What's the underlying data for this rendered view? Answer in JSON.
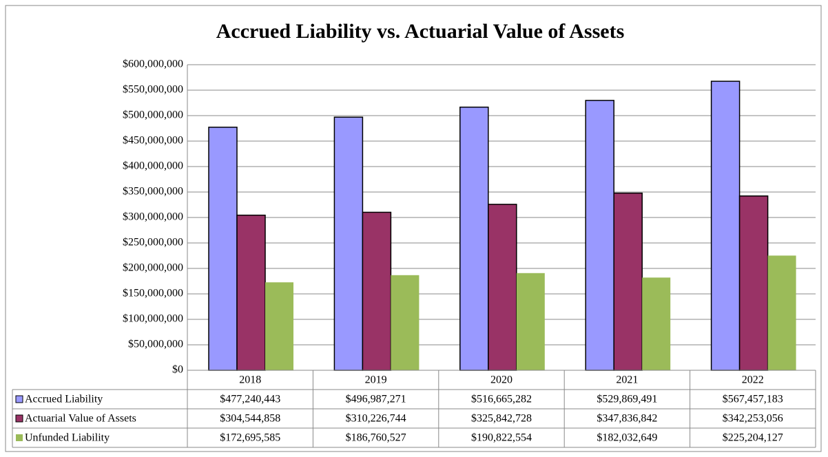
{
  "chart_data": {
    "type": "bar",
    "title": "Accrued Liability vs. Actuarial Value of Assets",
    "categories": [
      "2018",
      "2019",
      "2020",
      "2021",
      "2022"
    ],
    "series": [
      {
        "name": "Accrued Liability",
        "color": "#9999ff",
        "values": [
          477240443,
          496987271,
          516665282,
          529869491,
          567457183
        ],
        "value_labels": [
          "$477,240,443",
          "$496,987,271",
          "$516,665,282",
          "$529,869,491",
          "$567,457,183"
        ]
      },
      {
        "name": "Actuarial Value of Assets",
        "color": "#993366",
        "values": [
          304544858,
          310226744,
          325842728,
          347836842,
          342253056
        ],
        "value_labels": [
          "$304,544,858",
          "$310,226,744",
          "$325,842,728",
          "$347,836,842",
          "$342,253,056"
        ]
      },
      {
        "name": "Unfunded Liability",
        "color": "#9bbb59",
        "values": [
          172695585,
          186760527,
          190822554,
          182032649,
          225204127
        ],
        "value_labels": [
          "$172,695,585",
          "$186,760,527",
          "$190,822,554",
          "$182,032,649",
          "$225,204,127"
        ]
      }
    ],
    "ylim": [
      0,
      600000000
    ],
    "yticks": [
      {
        "value": 0,
        "label": "$0"
      },
      {
        "value": 50000000,
        "label": "$50,000,000"
      },
      {
        "value": 100000000,
        "label": "$100,000,000"
      },
      {
        "value": 150000000,
        "label": "$150,000,000"
      },
      {
        "value": 200000000,
        "label": "$200,000,000"
      },
      {
        "value": 250000000,
        "label": "$250,000,000"
      },
      {
        "value": 300000000,
        "label": "$300,000,000"
      },
      {
        "value": 350000000,
        "label": "$350,000,000"
      },
      {
        "value": 400000000,
        "label": "$400,000,000"
      },
      {
        "value": 450000000,
        "label": "$450,000,000"
      },
      {
        "value": 500000000,
        "label": "$500,000,000"
      },
      {
        "value": 550000000,
        "label": "$550,000,000"
      },
      {
        "value": 600000000,
        "label": "$600,000,000"
      }
    ],
    "grid": true
  }
}
